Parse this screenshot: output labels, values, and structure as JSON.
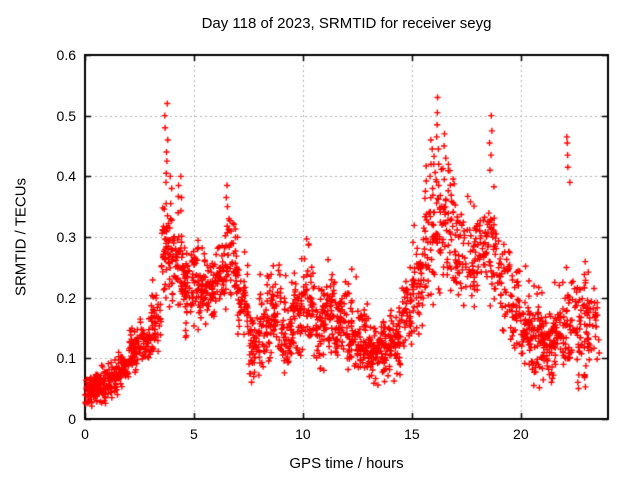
{
  "chart_data": {
    "type": "scatter",
    "title": "Day 118 of 2023, SRMTID for receiver seyg",
    "xlabel": "GPS time / hours",
    "ylabel": "SRMTID / TECUs",
    "xlim": [
      0,
      24
    ],
    "ylim": [
      0,
      0.6
    ],
    "xticks": [
      "0",
      "5",
      "10",
      "15",
      "20"
    ],
    "yticks": [
      "0",
      "0.1",
      "0.2",
      "0.3",
      "0.4",
      "0.5",
      "0.6"
    ],
    "grid": true,
    "grid_style": "dashed",
    "grid_color": "#b3b3b3",
    "legend": "none",
    "marker": "plus",
    "marker_color": "#ff0000",
    "axis_color": "#000000",
    "background_color": "#ffffff",
    "bins_format": [
      "t_start_hours",
      "t_end_hours",
      "n_points",
      "min_tecu",
      "max_tecu",
      "center_tecu"
    ],
    "bins": [
      [
        0.02,
        0.5,
        65,
        0.02,
        0.08,
        0.045
      ],
      [
        0.5,
        1.0,
        65,
        0.02,
        0.09,
        0.05
      ],
      [
        1.0,
        1.5,
        55,
        0.03,
        0.1,
        0.065
      ],
      [
        1.5,
        2.0,
        55,
        0.05,
        0.12,
        0.085
      ],
      [
        2.0,
        2.5,
        55,
        0.07,
        0.15,
        0.11
      ],
      [
        2.5,
        3.0,
        50,
        0.08,
        0.17,
        0.125
      ],
      [
        3.0,
        3.5,
        45,
        0.1,
        0.24,
        0.16
      ],
      [
        3.5,
        4.0,
        55,
        0.18,
        0.38,
        0.27
      ],
      [
        4.0,
        4.5,
        55,
        0.18,
        0.37,
        0.26
      ],
      [
        4.5,
        5.0,
        55,
        0.12,
        0.31,
        0.22
      ],
      [
        5.0,
        5.5,
        55,
        0.12,
        0.3,
        0.22
      ],
      [
        5.5,
        6.0,
        50,
        0.15,
        0.28,
        0.21
      ],
      [
        6.0,
        6.5,
        45,
        0.17,
        0.33,
        0.24
      ],
      [
        6.5,
        7.0,
        45,
        0.17,
        0.35,
        0.26
      ],
      [
        7.0,
        7.5,
        45,
        0.12,
        0.28,
        0.19
      ],
      [
        7.5,
        8.0,
        50,
        0.06,
        0.2,
        0.12
      ],
      [
        8.0,
        8.5,
        50,
        0.07,
        0.28,
        0.16
      ],
      [
        8.5,
        9.0,
        50,
        0.08,
        0.3,
        0.18
      ],
      [
        9.0,
        9.5,
        50,
        0.07,
        0.24,
        0.14
      ],
      [
        9.5,
        10.0,
        50,
        0.1,
        0.29,
        0.18
      ],
      [
        10.0,
        10.5,
        50,
        0.11,
        0.3,
        0.19
      ],
      [
        10.5,
        11.0,
        50,
        0.07,
        0.26,
        0.15
      ],
      [
        11.0,
        11.5,
        50,
        0.09,
        0.27,
        0.17
      ],
      [
        11.5,
        12.0,
        50,
        0.09,
        0.26,
        0.16
      ],
      [
        12.0,
        12.5,
        50,
        0.07,
        0.25,
        0.14
      ],
      [
        12.5,
        13.0,
        55,
        0.07,
        0.2,
        0.13
      ],
      [
        13.0,
        13.5,
        55,
        0.05,
        0.17,
        0.115
      ],
      [
        13.5,
        14.0,
        55,
        0.06,
        0.18,
        0.12
      ],
      [
        14.0,
        14.5,
        55,
        0.05,
        0.2,
        0.13
      ],
      [
        14.5,
        15.0,
        45,
        0.11,
        0.26,
        0.17
      ],
      [
        15.0,
        15.5,
        45,
        0.14,
        0.32,
        0.22
      ],
      [
        15.5,
        16.0,
        45,
        0.18,
        0.42,
        0.28
      ],
      [
        16.0,
        16.5,
        50,
        0.2,
        0.5,
        0.32
      ],
      [
        16.5,
        17.0,
        45,
        0.2,
        0.45,
        0.31
      ],
      [
        17.0,
        17.5,
        40,
        0.18,
        0.38,
        0.27
      ],
      [
        17.5,
        18.0,
        40,
        0.18,
        0.37,
        0.26
      ],
      [
        18.0,
        18.5,
        40,
        0.2,
        0.42,
        0.28
      ],
      [
        18.5,
        19.0,
        40,
        0.18,
        0.4,
        0.28
      ],
      [
        19.0,
        19.5,
        40,
        0.13,
        0.34,
        0.22
      ],
      [
        19.5,
        20.0,
        40,
        0.1,
        0.3,
        0.18
      ],
      [
        20.0,
        20.5,
        50,
        0.09,
        0.26,
        0.14
      ],
      [
        20.5,
        21.0,
        55,
        0.05,
        0.22,
        0.13
      ],
      [
        21.0,
        21.5,
        55,
        0.05,
        0.2,
        0.12
      ],
      [
        21.5,
        22.0,
        50,
        0.09,
        0.24,
        0.14
      ],
      [
        22.0,
        22.5,
        45,
        0.1,
        0.32,
        0.16
      ],
      [
        22.5,
        23.0,
        50,
        0.05,
        0.3,
        0.14
      ],
      [
        23.0,
        23.6,
        45,
        0.08,
        0.26,
        0.15
      ]
    ],
    "spikes": [
      {
        "t": 3.72,
        "values": [
          0.315,
          0.335,
          0.355,
          0.39,
          0.405,
          0.425,
          0.44,
          0.46,
          0.48,
          0.5,
          0.52
        ]
      },
      {
        "t": 3.95,
        "values": [
          0.33,
          0.355,
          0.38,
          0.4
        ]
      },
      {
        "t": 4.35,
        "values": [
          0.34,
          0.365,
          0.385,
          0.4
        ]
      },
      {
        "t": 6.55,
        "values": [
          0.33,
          0.35,
          0.365,
          0.385
        ]
      },
      {
        "t": 15.9,
        "values": [
          0.38,
          0.4,
          0.42,
          0.445,
          0.46
        ]
      },
      {
        "t": 16.2,
        "values": [
          0.42,
          0.445,
          0.465,
          0.485,
          0.505,
          0.53
        ]
      },
      {
        "t": 16.55,
        "values": [
          0.43,
          0.45,
          0.47
        ]
      },
      {
        "t": 18.6,
        "values": [
          0.41,
          0.435,
          0.455,
          0.475,
          0.5
        ]
      },
      {
        "t": 22.2,
        "values": [
          0.39,
          0.415,
          0.435,
          0.455,
          0.465
        ]
      }
    ]
  }
}
